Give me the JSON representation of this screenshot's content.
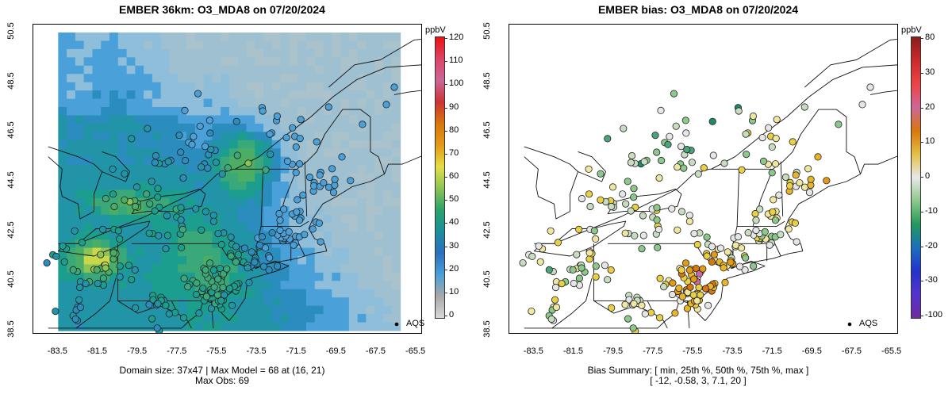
{
  "left_panel": {
    "title": "EMBER 36km: O3_MDA8 on 07/20/2024",
    "unit": "ppbV",
    "caption_line1": "Domain size: 37x47 | Max Model = 68 at (16, 21)",
    "caption_line2": "Max Obs: 69",
    "legend_label": "AQS",
    "colorbar_ticks": [
      "120",
      "110",
      "100",
      "90",
      "80",
      "70",
      "60",
      "50",
      "40",
      "30",
      "20",
      "10",
      "0"
    ]
  },
  "right_panel": {
    "title": "EMBER bias: O3_MDA8 on 07/20/2024",
    "unit": "ppbV",
    "caption_line1": "Bias Summary: [ min, 25th %, 50th %, 75th %, max ]",
    "caption_line2": "[ -12,   -0.58,   3,   7.1,   20 ]",
    "legend_label": "AQS",
    "colorbar_ticks": [
      "80",
      "30",
      "20",
      "10",
      "0",
      "-10",
      "-20",
      "-30",
      "-100"
    ]
  },
  "axes": {
    "y_ticks": [
      "50.5",
      "48.5",
      "46.5",
      "44.5",
      "42.5",
      "40.5",
      "38.5"
    ],
    "x_ticks": [
      "-83.5",
      "-81.5",
      "-79.5",
      "-77.5",
      "-75.5",
      "-73.5",
      "-71.5",
      "-69.5",
      "-67.5",
      "-65.5"
    ]
  },
  "chart_data": {
    "type": "heatmap",
    "variable": "O3_MDA8",
    "date": "07/20/2024",
    "units": "ppbV",
    "lon_range": [
      -84.5,
      -65.0
    ],
    "lat_range": [
      38.3,
      50.8
    ],
    "model_domain": {
      "lon": [
        -83.5,
        -66.3
      ],
      "lat": [
        38.5,
        50.5
      ]
    },
    "model_max": 68,
    "obs_max": 69,
    "bias_summary": {
      "min": -12,
      "p25": -0.58,
      "p50": 3,
      "p75": 7.1,
      "max": 20
    },
    "colors": {
      "bg_far_ocean": "#a9c2cc",
      "bg_ocean_mid": "#8fbedb",
      "bg_ocean": "#4aa0d8",
      "low": "#2b8cbe",
      "mid": "#1b9e8e",
      "green": "#4cae64",
      "yellow": "#e3df44",
      "orange": "#e39a17",
      "dark_orange": "#d9760d"
    }
  }
}
